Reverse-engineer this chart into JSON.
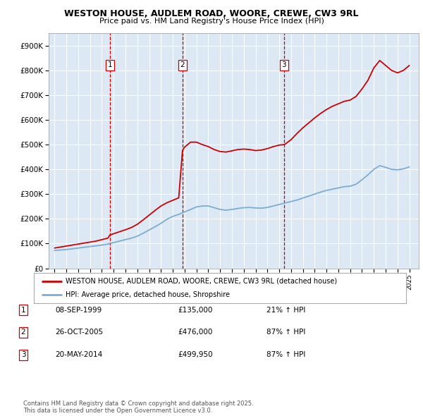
{
  "title": "WESTON HOUSE, AUDLEM ROAD, WOORE, CREWE, CW3 9RL",
  "subtitle": "Price paid vs. HM Land Registry's House Price Index (HPI)",
  "background_color": "#dce9f5",
  "ylabel": "",
  "xlabel": "",
  "ylim": [
    0,
    950000
  ],
  "yticks": [
    0,
    100000,
    200000,
    300000,
    400000,
    500000,
    600000,
    700000,
    800000,
    900000
  ],
  "ytick_labels": [
    "£0",
    "£100K",
    "£200K",
    "£300K",
    "£400K",
    "£500K",
    "£600K",
    "£700K",
    "£800K",
    "£900K"
  ],
  "sale_dates": [
    1999.69,
    2005.82,
    2014.39
  ],
  "sale_prices": [
    135000,
    476000,
    499950
  ],
  "sale_labels": [
    "1",
    "2",
    "3"
  ],
  "vline_color": "#cc0000",
  "red_line_color": "#cc0000",
  "blue_line_color": "#7aadd4",
  "footer_text": "Contains HM Land Registry data © Crown copyright and database right 2025.\nThis data is licensed under the Open Government Licence v3.0.",
  "legend_label_red": "WESTON HOUSE, AUDLEM ROAD, WOORE, CREWE, CW3 9RL (detached house)",
  "legend_label_blue": "HPI: Average price, detached house, Shropshire",
  "table_rows": [
    {
      "num": "1",
      "date": "08-SEP-1999",
      "price": "£135,000",
      "change": "21% ↑ HPI"
    },
    {
      "num": "2",
      "date": "26-OCT-2005",
      "price": "£476,000",
      "change": "87% ↑ HPI"
    },
    {
      "num": "3",
      "date": "20-MAY-2014",
      "price": "£499,950",
      "change": "87% ↑ HPI"
    }
  ],
  "hpi_x": [
    1995.0,
    1995.5,
    1996.0,
    1996.5,
    1997.0,
    1997.5,
    1998.0,
    1998.5,
    1999.0,
    1999.5,
    2000.0,
    2000.5,
    2001.0,
    2001.5,
    2002.0,
    2002.5,
    2003.0,
    2003.5,
    2004.0,
    2004.5,
    2005.0,
    2005.5,
    2006.0,
    2006.5,
    2007.0,
    2007.5,
    2008.0,
    2008.5,
    2009.0,
    2009.5,
    2010.0,
    2010.5,
    2011.0,
    2011.5,
    2012.0,
    2012.5,
    2013.0,
    2013.5,
    2014.0,
    2014.5,
    2015.0,
    2015.5,
    2016.0,
    2016.5,
    2017.0,
    2017.5,
    2018.0,
    2018.5,
    2019.0,
    2019.5,
    2020.0,
    2020.5,
    2021.0,
    2021.5,
    2022.0,
    2022.5,
    2023.0,
    2023.5,
    2024.0,
    2024.5,
    2025.0
  ],
  "hpi_y": [
    72000,
    74000,
    76000,
    79000,
    82000,
    85000,
    88000,
    91000,
    94000,
    98000,
    104000,
    110000,
    116000,
    122000,
    130000,
    142000,
    155000,
    168000,
    182000,
    198000,
    210000,
    218000,
    228000,
    238000,
    248000,
    252000,
    252000,
    245000,
    238000,
    235000,
    238000,
    242000,
    245000,
    246000,
    244000,
    243000,
    246000,
    252000,
    258000,
    264000,
    270000,
    276000,
    284000,
    292000,
    300000,
    308000,
    315000,
    320000,
    325000,
    330000,
    332000,
    340000,
    358000,
    378000,
    400000,
    415000,
    408000,
    400000,
    398000,
    402000,
    410000
  ],
  "red_x": [
    1995.0,
    1995.5,
    1996.0,
    1996.5,
    1997.0,
    1997.5,
    1998.0,
    1998.5,
    1999.0,
    1999.5,
    1999.69,
    2000.0,
    2000.5,
    2001.0,
    2001.5,
    2002.0,
    2002.5,
    2003.0,
    2003.5,
    2004.0,
    2004.5,
    2005.0,
    2005.5,
    2005.82,
    2006.0,
    2006.5,
    2007.0,
    2007.5,
    2008.0,
    2008.5,
    2009.0,
    2009.5,
    2010.0,
    2010.5,
    2011.0,
    2011.5,
    2012.0,
    2012.5,
    2013.0,
    2013.5,
    2014.0,
    2014.39,
    2014.5,
    2015.0,
    2015.5,
    2016.0,
    2016.5,
    2017.0,
    2017.5,
    2018.0,
    2018.5,
    2019.0,
    2019.5,
    2020.0,
    2020.5,
    2021.0,
    2021.5,
    2022.0,
    2022.5,
    2023.0,
    2023.5,
    2024.0,
    2024.5,
    2025.0
  ],
  "red_y": [
    82000,
    86000,
    90000,
    94000,
    98000,
    102000,
    106000,
    110000,
    116000,
    122000,
    135000,
    140000,
    148000,
    156000,
    165000,
    178000,
    196000,
    215000,
    234000,
    252000,
    265000,
    275000,
    285000,
    476000,
    490000,
    510000,
    510000,
    500000,
    492000,
    480000,
    472000,
    470000,
    475000,
    480000,
    482000,
    480000,
    476000,
    478000,
    484000,
    492000,
    498000,
    499950,
    502000,
    520000,
    545000,
    568000,
    588000,
    608000,
    626000,
    642000,
    655000,
    665000,
    675000,
    680000,
    695000,
    725000,
    760000,
    810000,
    840000,
    820000,
    800000,
    790000,
    800000,
    820000
  ]
}
